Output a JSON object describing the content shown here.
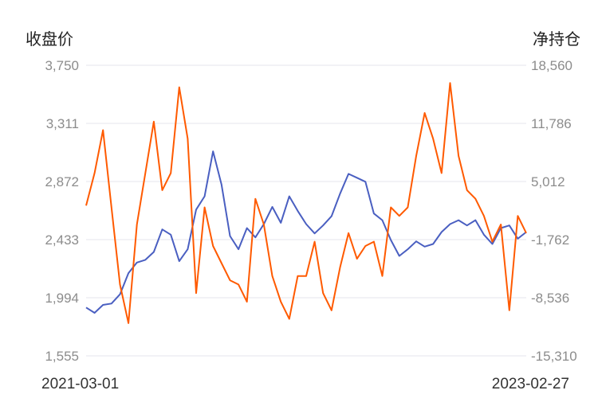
{
  "chart_data": {
    "type": "line",
    "left_axis": {
      "title": "收盘价",
      "ticks": [
        "3,750",
        "3,311",
        "2,872",
        "2,433",
        "1,994",
        "1,555"
      ],
      "range": [
        1555,
        3750
      ]
    },
    "right_axis": {
      "title": "净持仓",
      "ticks": [
        "18,560",
        "11,786",
        "5,012",
        "-1,762",
        "-8,536",
        "-15,310"
      ],
      "range": [
        -15310,
        18560
      ]
    },
    "x_axis": {
      "start_label": "2021-03-01",
      "end_label": "2023-02-27"
    },
    "grid": true,
    "colors": {
      "close_price": "#4a5fc1",
      "net_position": "#ff5a00",
      "grid": "#e6e6ec"
    },
    "series": [
      {
        "key": "close_price",
        "axis": "left",
        "x": [
          "2021-03-01",
          "2021-03-15",
          "2021-03-29",
          "2021-04-12",
          "2021-04-26",
          "2021-05-10",
          "2021-05-24",
          "2021-06-07",
          "2021-06-21",
          "2021-07-05",
          "2021-07-19",
          "2021-08-02",
          "2021-08-16",
          "2021-08-30",
          "2021-09-13",
          "2021-09-27",
          "2021-10-11",
          "2021-10-25",
          "2021-11-08",
          "2021-11-22",
          "2021-12-06",
          "2021-12-20",
          "2022-01-03",
          "2022-01-17",
          "2022-01-31",
          "2022-02-14",
          "2022-02-28",
          "2022-03-14",
          "2022-03-28",
          "2022-04-11",
          "2022-04-25",
          "2022-05-09",
          "2022-05-23",
          "2022-06-06",
          "2022-06-20",
          "2022-07-04",
          "2022-07-18",
          "2022-08-01",
          "2022-08-15",
          "2022-08-29",
          "2022-09-12",
          "2022-09-26",
          "2022-10-10",
          "2022-10-24",
          "2022-11-07",
          "2022-11-21",
          "2022-12-05",
          "2022-12-19",
          "2023-01-02",
          "2023-01-16",
          "2023-01-30",
          "2023-02-13",
          "2023-02-27"
        ],
        "values": [
          1920,
          1880,
          1940,
          1950,
          2020,
          2180,
          2260,
          2280,
          2340,
          2510,
          2470,
          2270,
          2360,
          2660,
          2760,
          3100,
          2850,
          2460,
          2360,
          2520,
          2450,
          2550,
          2680,
          2560,
          2760,
          2650,
          2550,
          2480,
          2540,
          2610,
          2780,
          2930,
          2900,
          2870,
          2630,
          2580,
          2430,
          2310,
          2360,
          2420,
          2380,
          2400,
          2490,
          2550,
          2580,
          2540,
          2580,
          2470,
          2400,
          2520,
          2540,
          2440,
          2490
        ]
      },
      {
        "key": "net_position",
        "axis": "right",
        "x": [
          "2021-03-01",
          "2021-03-15",
          "2021-03-29",
          "2021-04-12",
          "2021-04-26",
          "2021-05-10",
          "2021-05-24",
          "2021-06-07",
          "2021-06-21",
          "2021-07-05",
          "2021-07-19",
          "2021-08-02",
          "2021-08-16",
          "2021-08-30",
          "2021-09-13",
          "2021-09-27",
          "2021-10-11",
          "2021-10-25",
          "2021-11-08",
          "2021-11-22",
          "2021-12-06",
          "2021-12-20",
          "2022-01-03",
          "2022-01-17",
          "2022-01-31",
          "2022-02-14",
          "2022-02-28",
          "2022-03-14",
          "2022-03-28",
          "2022-04-11",
          "2022-04-25",
          "2022-05-09",
          "2022-05-23",
          "2022-06-06",
          "2022-06-20",
          "2022-07-04",
          "2022-07-18",
          "2022-08-01",
          "2022-08-15",
          "2022-08-29",
          "2022-09-12",
          "2022-09-26",
          "2022-10-10",
          "2022-10-24",
          "2022-11-07",
          "2022-11-21",
          "2022-12-05",
          "2022-12-19",
          "2023-01-02",
          "2023-01-16",
          "2023-01-30",
          "2023-02-13",
          "2023-02-27"
        ],
        "values": [
          2200,
          6000,
          11000,
          2000,
          -7000,
          -11500,
          0,
          6000,
          12000,
          4000,
          6000,
          16000,
          10000,
          -8000,
          2000,
          -2500,
          -4500,
          -6500,
          -7000,
          -9000,
          3000,
          0,
          -6000,
          -9000,
          -11000,
          -6000,
          -6000,
          -2000,
          -8000,
          -10000,
          -5000,
          -1000,
          -4000,
          -2500,
          -2000,
          -6000,
          2000,
          1000,
          2000,
          8000,
          13000,
          10000,
          6000,
          16500,
          8000,
          4000,
          3000,
          1000,
          -2000,
          0,
          -10000,
          1000,
          -1000
        ]
      }
    ]
  }
}
